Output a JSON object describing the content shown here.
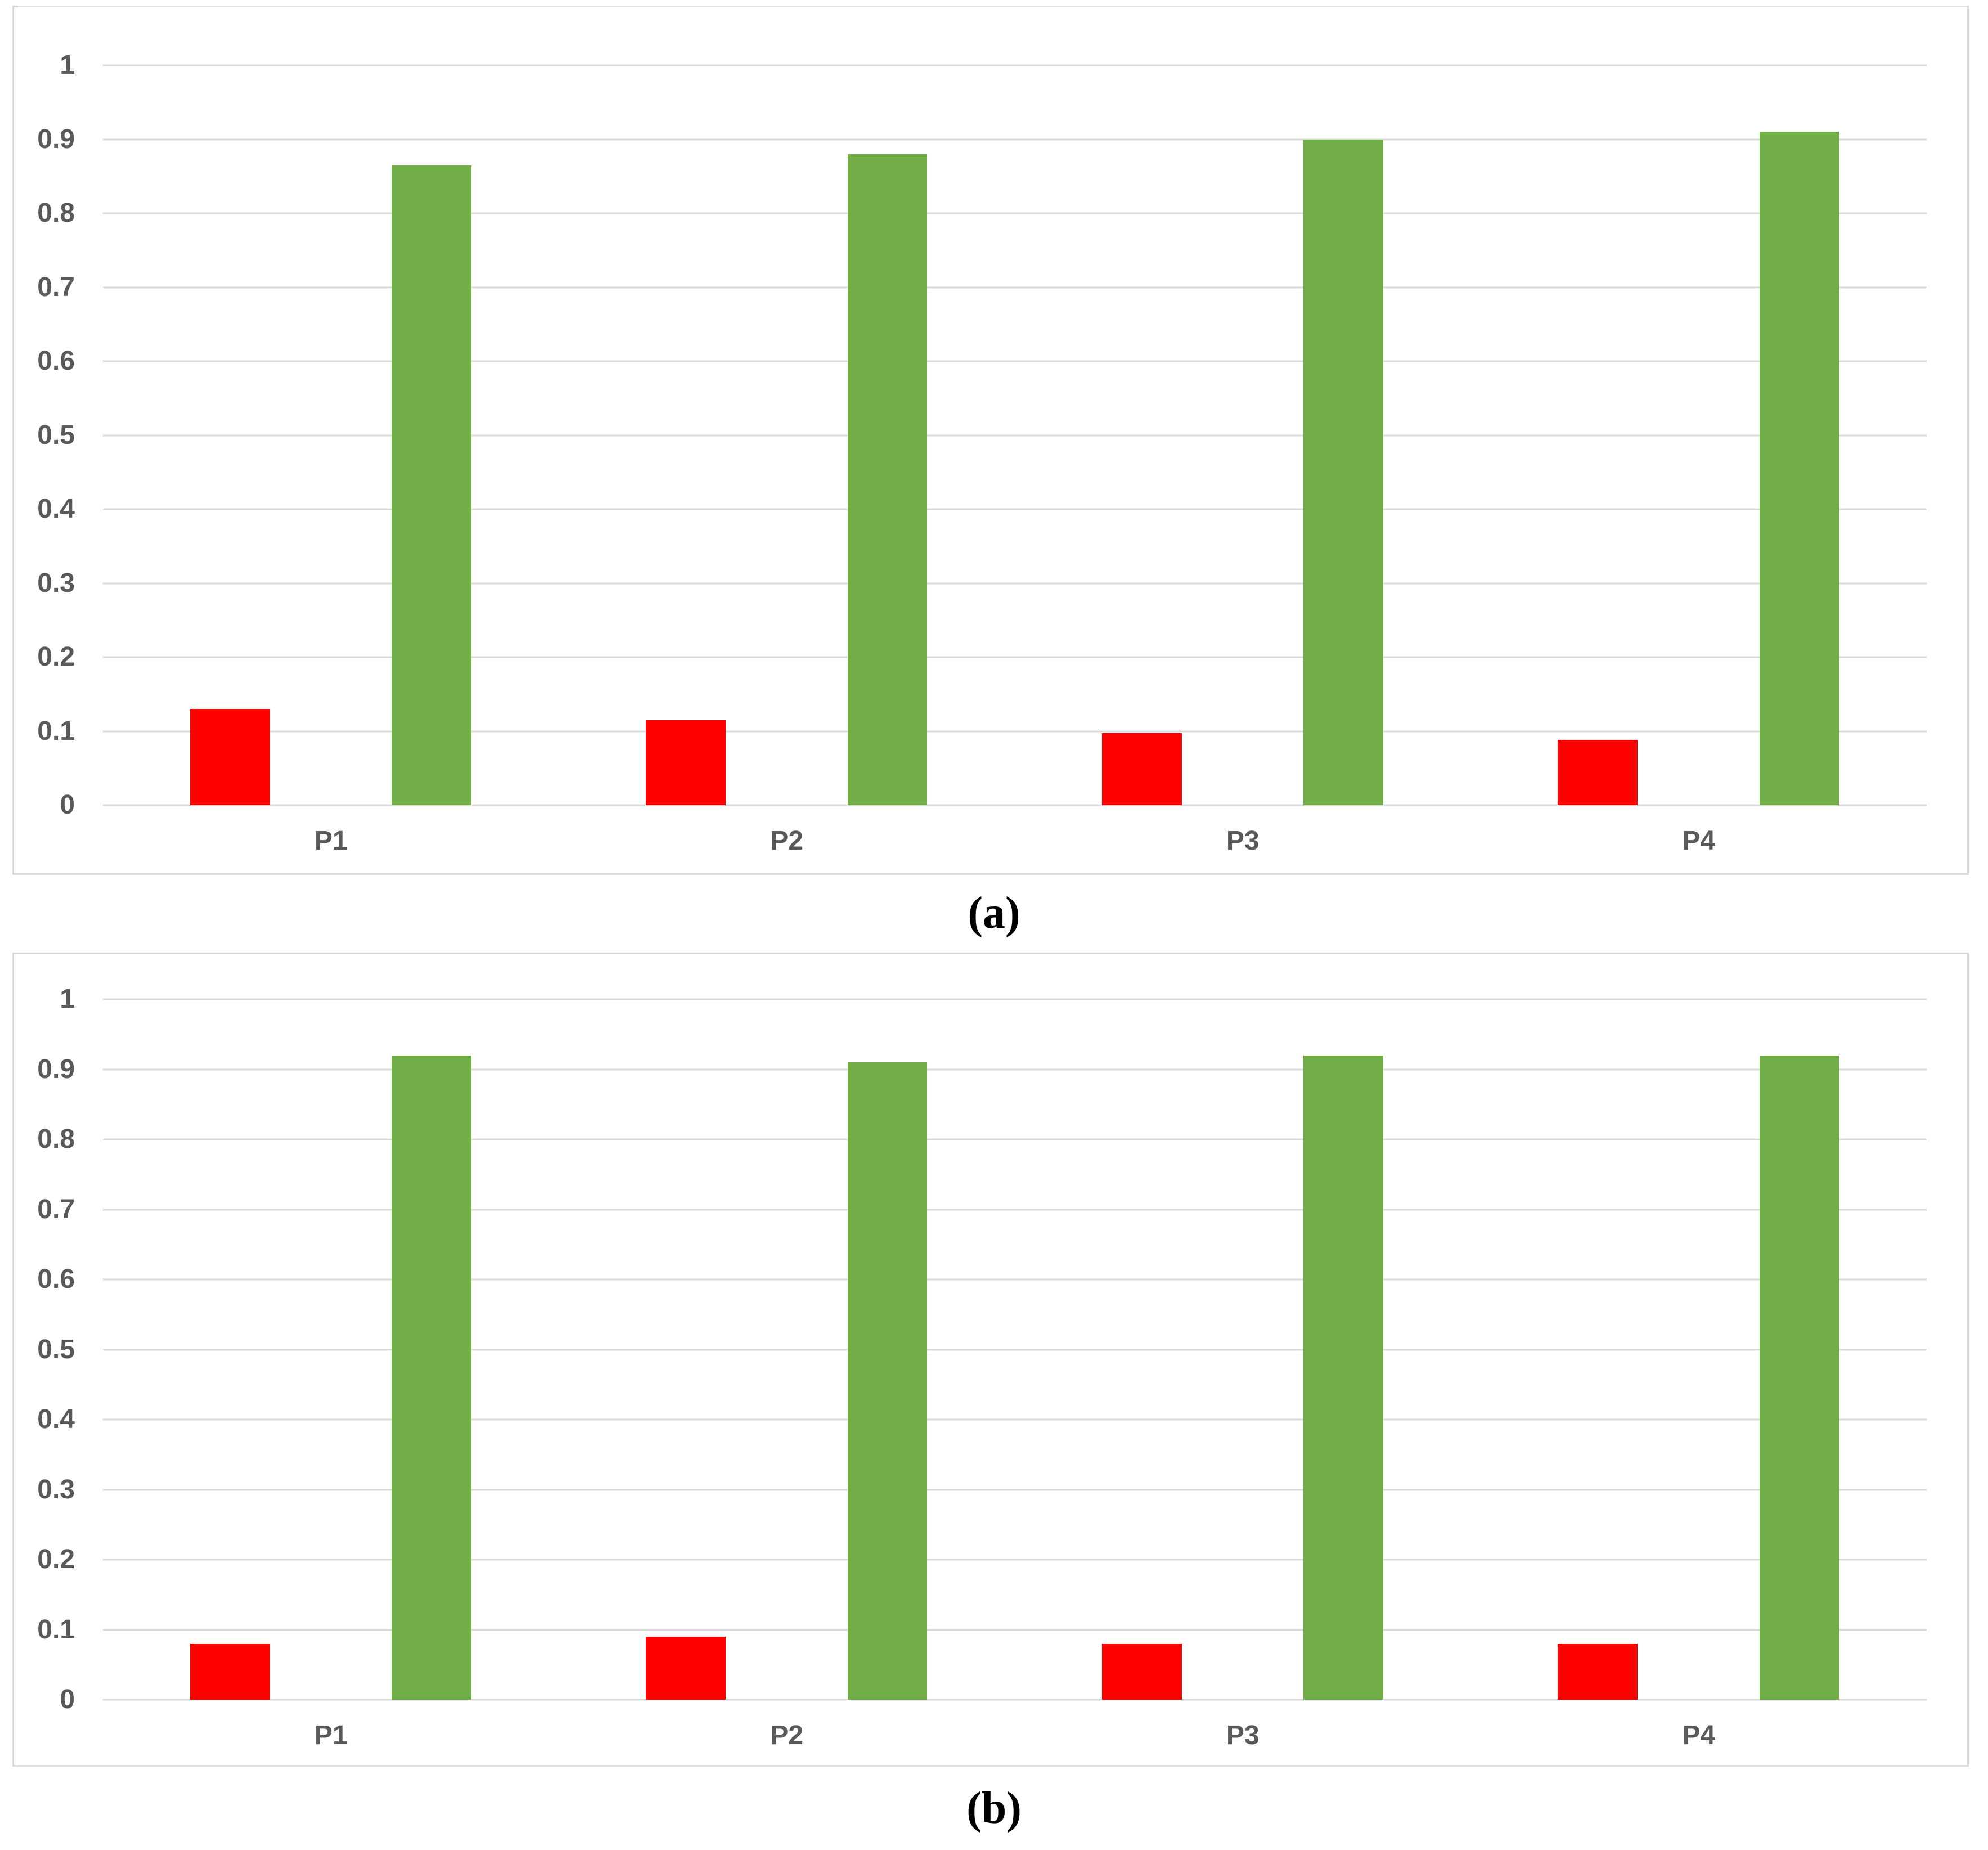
{
  "figure": {
    "background": "#ffffff",
    "caption_a": "(a)",
    "caption_b": "(b)"
  },
  "styles": {
    "grid_color": "#d9d9d9",
    "panel_border_color": "#d9d9d9",
    "axis_text_color": "#595959",
    "red_series_color": "#ff0000",
    "green_series_color": "#70ad47"
  },
  "chart_data": [
    {
      "panel_label": "(a)",
      "type": "bar",
      "title": "",
      "xlabel": "",
      "ylabel": "",
      "categories": [
        "P1",
        "P2",
        "P3",
        "P4"
      ],
      "series": [
        {
          "name": "red",
          "color": "#ff0000",
          "values": [
            0.13,
            0.115,
            0.097,
            0.088
          ]
        },
        {
          "name": "green",
          "color": "#70ad47",
          "values": [
            0.865,
            0.88,
            0.9,
            0.91
          ]
        }
      ],
      "ylim": [
        0,
        1
      ],
      "ytick_labels": [
        "1",
        "0.9",
        "0.8",
        "0.7",
        "0.6",
        "0.5",
        "0.4",
        "0.3",
        "0.2",
        "0.1",
        "0"
      ],
      "ytick_values": [
        1,
        0.9,
        0.8,
        0.7,
        0.6,
        0.5,
        0.4,
        0.3,
        0.2,
        0.1,
        0
      ],
      "grid": true,
      "legend": false
    },
    {
      "panel_label": "(b)",
      "type": "bar",
      "title": "",
      "xlabel": "",
      "ylabel": "",
      "categories": [
        "P1",
        "P2",
        "P3",
        "P4"
      ],
      "series": [
        {
          "name": "red",
          "color": "#ff0000",
          "values": [
            0.08,
            0.09,
            0.08,
            0.08
          ]
        },
        {
          "name": "green",
          "color": "#70ad47",
          "values": [
            0.92,
            0.91,
            0.92,
            0.92
          ]
        }
      ],
      "ylim": [
        0,
        1
      ],
      "ytick_labels": [
        "1",
        "0.9",
        "0.8",
        "0.7",
        "0.6",
        "0.5",
        "0.4",
        "0.3",
        "0.2",
        "0.1",
        "0"
      ],
      "ytick_values": [
        1,
        0.9,
        0.8,
        0.7,
        0.6,
        0.5,
        0.4,
        0.3,
        0.2,
        0.1,
        0
      ],
      "grid": true,
      "legend": false
    }
  ]
}
